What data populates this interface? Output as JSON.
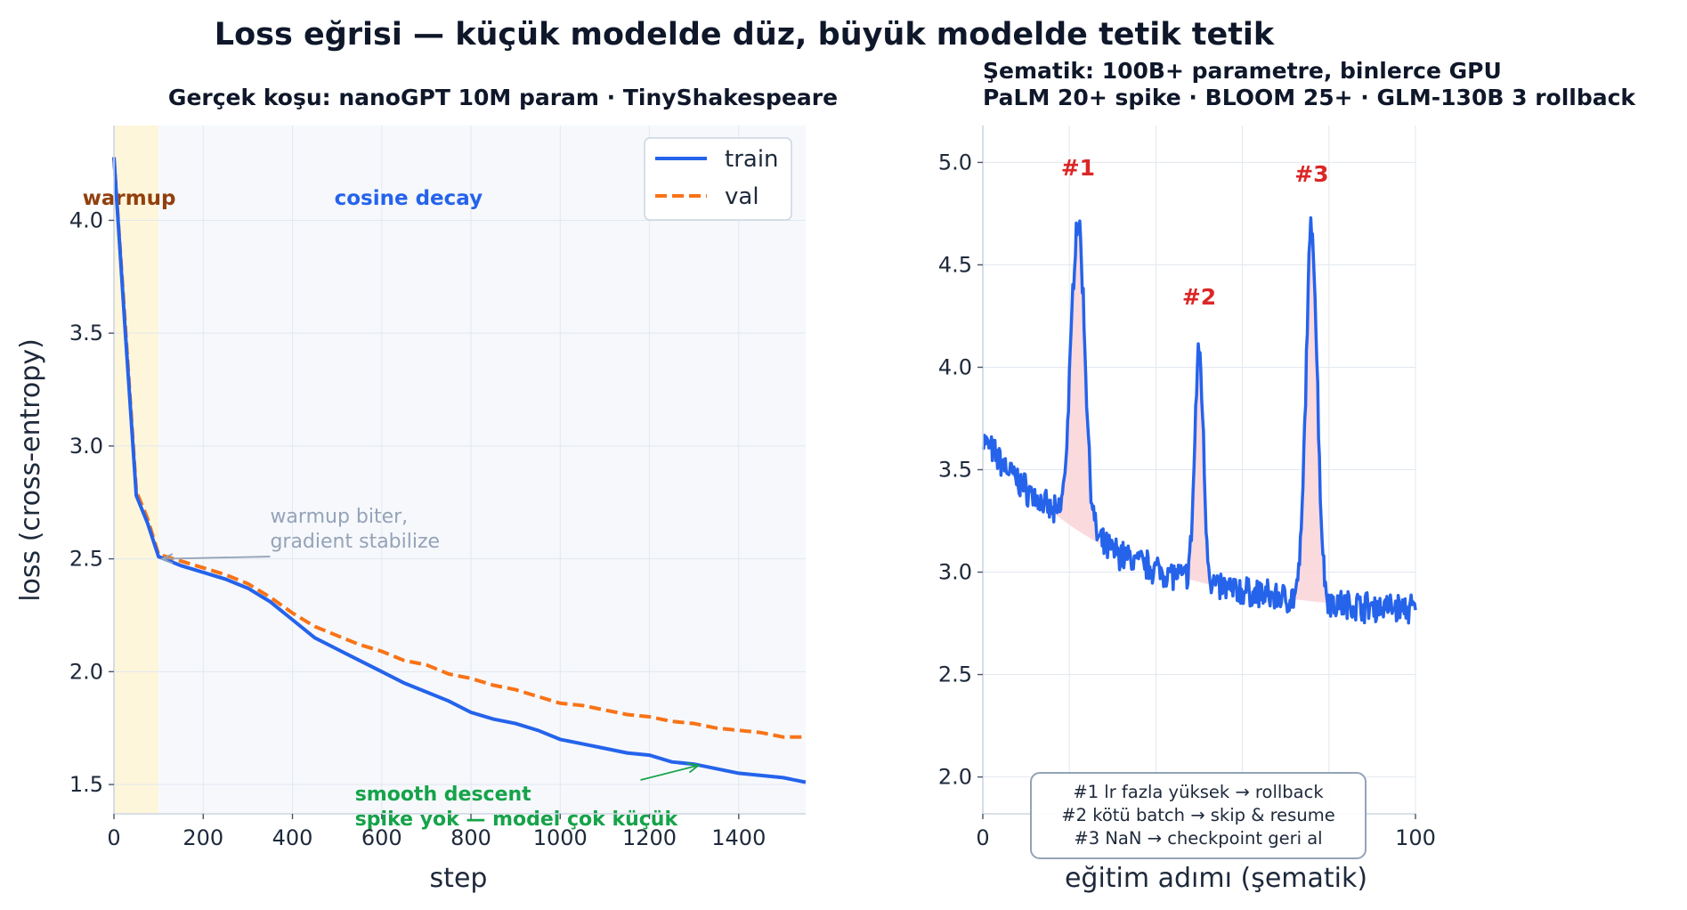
{
  "suptitle": "Loss eğrisi — küçük modelde düz, büyük modelde tetik tetik",
  "chart_data": [
    {
      "type": "line",
      "title": "Gerçek koşu: nanoGPT 10M param · TinyShakespeare",
      "xlabel": "step",
      "ylabel": "loss (cross-entropy)",
      "xlim": [
        0,
        1550
      ],
      "ylim": [
        1.37,
        4.42
      ],
      "xticks": [
        0,
        200,
        400,
        600,
        800,
        1000,
        1200,
        1400
      ],
      "yticks": [
        1.5,
        2.0,
        2.5,
        3.0,
        3.5,
        4.0
      ],
      "grid": true,
      "legend": "top-right",
      "regions": [
        {
          "label": "warmup",
          "x0": 0,
          "x1": 100,
          "color": "#fef6db",
          "text_color": "#92400e"
        },
        {
          "label": "cosine decay",
          "x0": 100,
          "x1": 1550,
          "color": "#f6f8fc",
          "text_color": "#2563eb"
        }
      ],
      "series": [
        {
          "name": "train",
          "color": "#2563eb",
          "style": "solid",
          "x": [
            0,
            25,
            50,
            75,
            100,
            150,
            200,
            250,
            300,
            350,
            400,
            450,
            500,
            550,
            600,
            650,
            700,
            750,
            800,
            850,
            900,
            950,
            1000,
            1050,
            1100,
            1150,
            1200,
            1250,
            1300,
            1350,
            1400,
            1450,
            1500,
            1550
          ],
          "values": [
            4.28,
            3.52,
            2.78,
            2.66,
            2.51,
            2.47,
            2.44,
            2.41,
            2.37,
            2.31,
            2.23,
            2.15,
            2.1,
            2.05,
            2.0,
            1.95,
            1.91,
            1.87,
            1.82,
            1.79,
            1.77,
            1.74,
            1.7,
            1.68,
            1.66,
            1.64,
            1.63,
            1.6,
            1.59,
            1.57,
            1.55,
            1.54,
            1.53,
            1.51
          ]
        },
        {
          "name": "val",
          "color": "#f97316",
          "style": "dashed",
          "x": [
            0,
            25,
            50,
            75,
            100,
            150,
            200,
            250,
            300,
            350,
            400,
            450,
            500,
            550,
            600,
            650,
            700,
            750,
            800,
            850,
            900,
            950,
            1000,
            1050,
            1100,
            1150,
            1200,
            1250,
            1300,
            1350,
            1400,
            1450,
            1500,
            1550
          ],
          "values": [
            4.28,
            3.55,
            2.8,
            2.68,
            2.52,
            2.49,
            2.46,
            2.43,
            2.39,
            2.33,
            2.26,
            2.2,
            2.16,
            2.12,
            2.09,
            2.05,
            2.03,
            1.99,
            1.97,
            1.94,
            1.92,
            1.89,
            1.86,
            1.85,
            1.83,
            1.81,
            1.8,
            1.78,
            1.77,
            1.75,
            1.74,
            1.73,
            1.71,
            1.71
          ]
        }
      ],
      "annotations": [
        {
          "lines": [
            "warmup biter,",
            "gradient stabilize"
          ],
          "color": "#94a3b8",
          "text_at": [
            350,
            2.66
          ],
          "arrow_to": [
            100,
            2.5
          ]
        },
        {
          "lines": [
            "smooth descent",
            "spike yok — model çok küçük"
          ],
          "color": "#16a34a",
          "text_at": [
            540,
            1.435
          ],
          "arrow_from": [
            1180,
            1.52
          ],
          "arrow_to": [
            1310,
            1.585
          ]
        }
      ]
    },
    {
      "type": "line",
      "title_lines": [
        "Şematik: 100B+ parametre, binlerce GPU",
        "PaLM 20+ spike · BLOOM 25+ · GLM-130B 3 rollback"
      ],
      "xlabel": "eğitim adımı (şematik)",
      "ylabel": "",
      "xlim": [
        0,
        100
      ],
      "ylim": [
        1.82,
        5.18
      ],
      "xticks": [
        0,
        100
      ],
      "yticks": [
        2.0,
        2.5,
        3.0,
        3.5,
        4.0,
        4.5,
        5.0
      ],
      "grid": true,
      "series": [
        {
          "name": "",
          "color": "#2563eb",
          "style": "solid",
          "baseline": {
            "start": 3.65,
            "end": 2.82
          }
        }
      ],
      "spikes": [
        {
          "label": "#1",
          "x": 22,
          "peak": 4.71,
          "width": 1.6
        },
        {
          "label": "#2",
          "x": 50,
          "peak": 4.08,
          "width": 1.0
        },
        {
          "label": "#3",
          "x": 76,
          "peak": 4.68,
          "width": 1.3
        }
      ],
      "spike_label_color": "#dc2626",
      "spike_fill_color": "#fad4d7",
      "note_box": [
        "#1 lr fazla yüksek → rollback",
        "#2 kötü batch → skip & resume",
        "#3 NaN → checkpoint geri al"
      ]
    }
  ]
}
